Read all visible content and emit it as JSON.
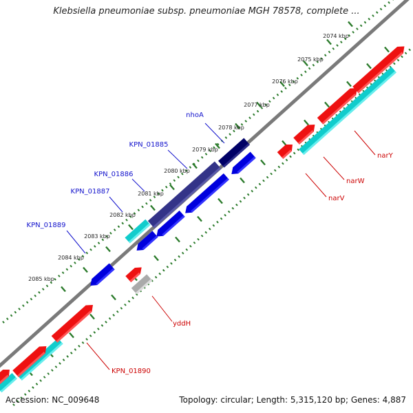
{
  "title": "Klebsiella pneumoniae subsp. pneumoniae MGH 78578, complete ...",
  "footer": {
    "accession": "Accession: NC_009648",
    "summary": "Topology: circular; Length: 5,315,120 bp; Genes: 4,887"
  },
  "colors": {
    "forward_cds": "#ee1111",
    "forward_cds_light": "#ff5555",
    "reverse_cds": "#0000dd",
    "reverse_cds_light": "#3333ff",
    "highlight_reverse": "#333388",
    "highlight_dark": "#000066",
    "cyan": "#11cccc",
    "grey_gene": "#aaaaaa",
    "backbone": "#7a7a7a",
    "ticks": "#2a7a2a",
    "label_blue": "#1111cc",
    "label_red": "#cc0000"
  },
  "ruler_labels": [
    "2074 kbp",
    "2075 kbp",
    "2076 kbp",
    "2077 kbp",
    "2078 kbp",
    "2079 kbp",
    "2080 kbp",
    "2081 kbp",
    "2082 kbp",
    "2083 kbp",
    "2084 kbp",
    "2085 kbp"
  ],
  "gene_labels_blue": [
    "nhoA",
    "KPN_01885",
    "KPN_01886",
    "KPN_01887",
    "KPN_01889"
  ],
  "gene_labels_red": [
    "narY",
    "narW",
    "narV",
    "yddH",
    "KPN_01890"
  ]
}
